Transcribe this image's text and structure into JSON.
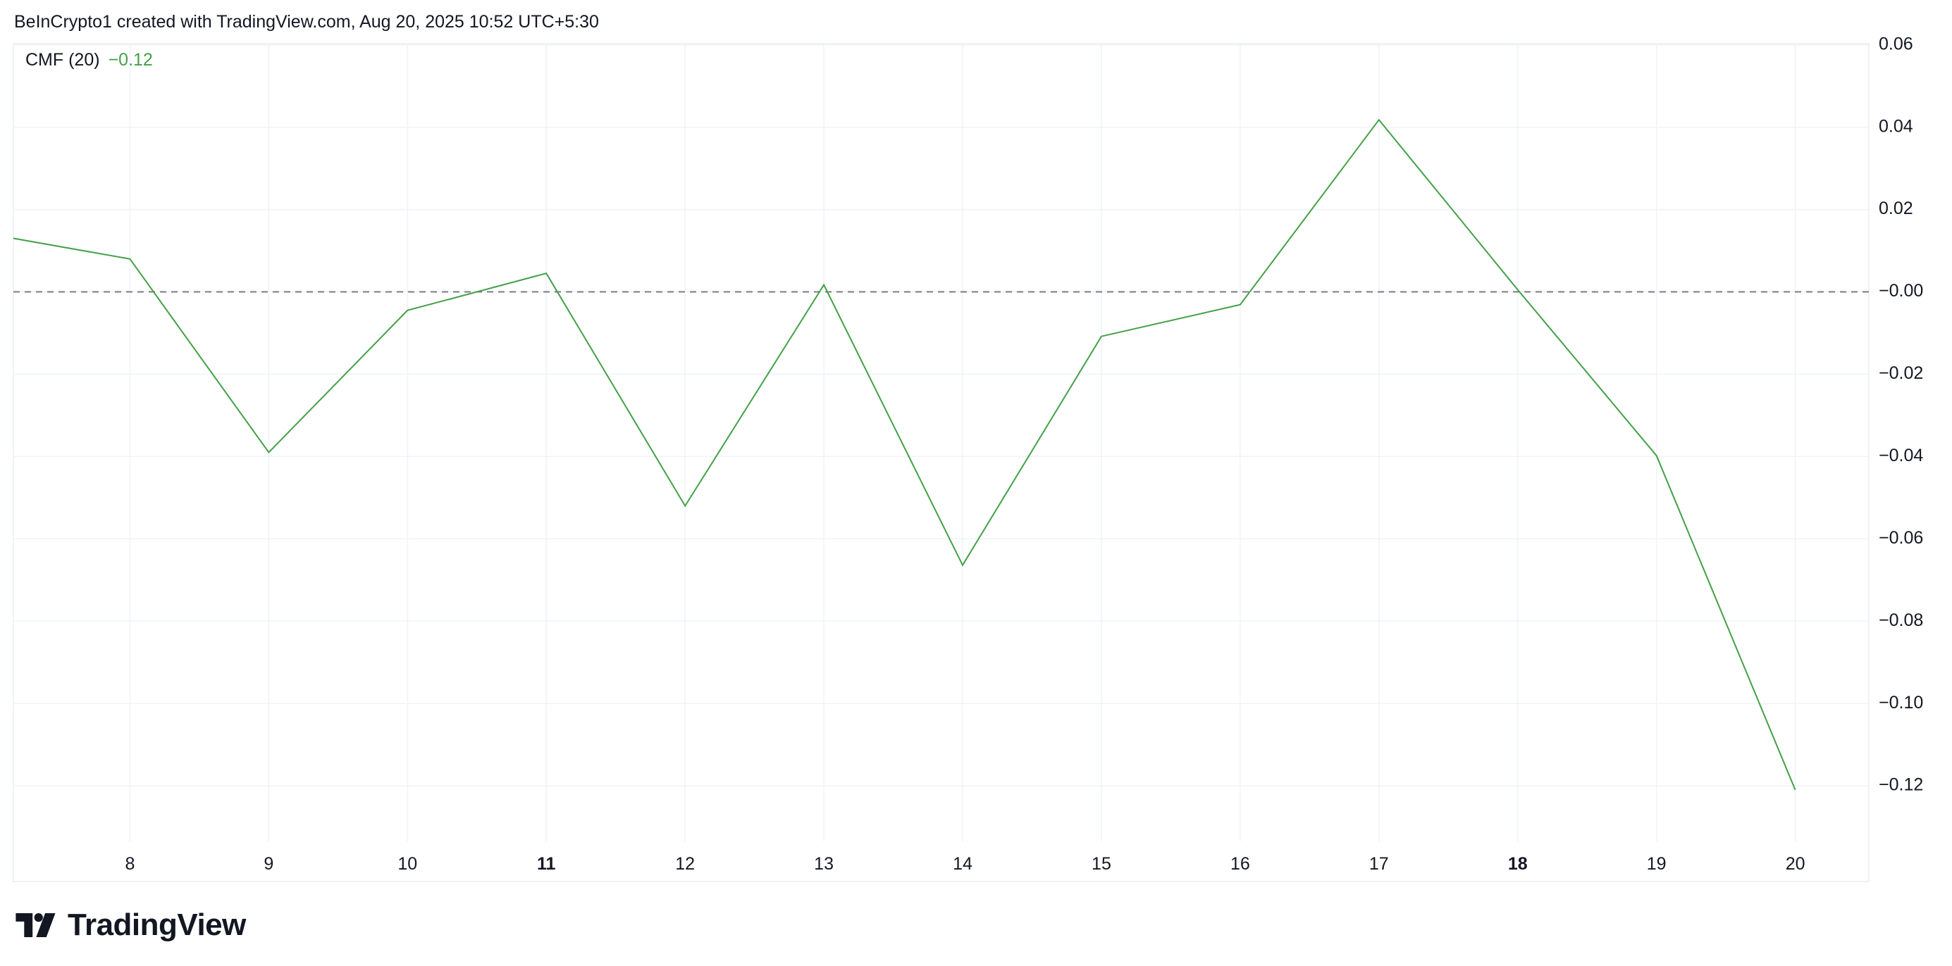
{
  "header": {
    "attribution": "BeInCrypto1 created with TradingView.com, Aug 20, 2025 10:52 UTC+5:30"
  },
  "indicator": {
    "name": "CMF (20)",
    "value": "−0.12"
  },
  "branding": {
    "logo_text": "TradingView"
  },
  "colors": {
    "line": "#43a047",
    "zero_line": "#787b86",
    "grid": "#f0f3fa",
    "text": "#131722"
  },
  "chart_data": {
    "type": "line",
    "title": "",
    "xlabel": "",
    "ylabel": "",
    "x_ticks": [
      {
        "value": 8,
        "label": "8",
        "bold": false
      },
      {
        "value": 9,
        "label": "9",
        "bold": false
      },
      {
        "value": 10,
        "label": "10",
        "bold": false
      },
      {
        "value": 11,
        "label": "11",
        "bold": true
      },
      {
        "value": 12,
        "label": "12",
        "bold": false
      },
      {
        "value": 13,
        "label": "13",
        "bold": false
      },
      {
        "value": 14,
        "label": "14",
        "bold": false
      },
      {
        "value": 15,
        "label": "15",
        "bold": false
      },
      {
        "value": 16,
        "label": "16",
        "bold": false
      },
      {
        "value": 17,
        "label": "17",
        "bold": false
      },
      {
        "value": 18,
        "label": "18",
        "bold": true
      },
      {
        "value": 19,
        "label": "19",
        "bold": false
      },
      {
        "value": 20,
        "label": "20",
        "bold": false
      }
    ],
    "y_ticks": [
      {
        "value": 0.06,
        "label": "0.06"
      },
      {
        "value": 0.04,
        "label": "0.04"
      },
      {
        "value": 0.02,
        "label": "0.02"
      },
      {
        "value": 0.0,
        "label": "−0.00"
      },
      {
        "value": -0.02,
        "label": "−0.02"
      },
      {
        "value": -0.04,
        "label": "−0.04"
      },
      {
        "value": -0.06,
        "label": "−0.06"
      },
      {
        "value": -0.08,
        "label": "−0.08"
      },
      {
        "value": -0.1,
        "label": "−0.10"
      },
      {
        "value": -0.12,
        "label": "−0.12"
      }
    ],
    "xlim": [
      7.16,
      20.53
    ],
    "ylim": [
      -0.1335,
      0.0603
    ],
    "zero_line": {
      "value": 0.0,
      "style": "dashed"
    },
    "grid": true,
    "series": [
      {
        "points": [
          {
            "x": 7.16,
            "y": 0.013
          },
          {
            "x": 8,
            "y": 0.008
          },
          {
            "x": 9,
            "y": -0.039
          },
          {
            "x": 10,
            "y": -0.0045
          },
          {
            "x": 11,
            "y": 0.0045
          },
          {
            "x": 12,
            "y": -0.052
          },
          {
            "x": 13,
            "y": 0.0017
          },
          {
            "x": 14,
            "y": -0.0664
          },
          {
            "x": 15,
            "y": -0.0108
          },
          {
            "x": 16,
            "y": -0.0031
          },
          {
            "x": 17,
            "y": 0.0418
          },
          {
            "x": 18,
            "y": 0.0005
          },
          {
            "x": 19,
            "y": -0.0398
          },
          {
            "x": 20,
            "y": -0.121
          }
        ]
      }
    ]
  }
}
